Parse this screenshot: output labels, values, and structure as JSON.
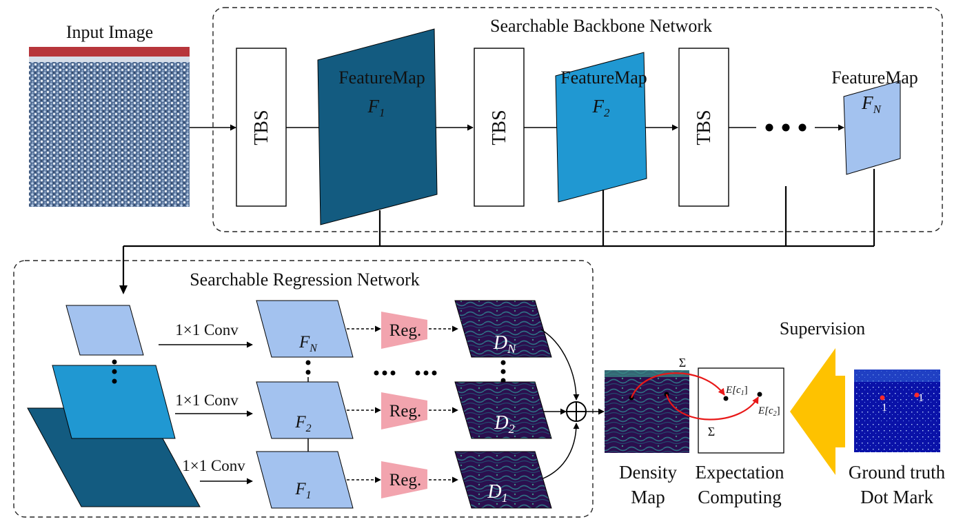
{
  "colors": {
    "feature_dark": "#135b80",
    "feature_mid": "#2098d2",
    "feature_light": "#a3c2ef",
    "reg_block": "#f2a4ae",
    "supervision_arrow": "#fec200",
    "density_bg": "#2b0f4e",
    "dotmark_bg": "#0a12a8",
    "red_arrow": "#e81818"
  },
  "input": {
    "title": "Input Image"
  },
  "backbone": {
    "title": "Searchable Backbone Network",
    "tbs_label": "TBS",
    "feature_label": "FeatureMap",
    "f1_sym": "F",
    "f1_sub": "1",
    "f2_sym": "F",
    "f2_sub": "2",
    "fn_sym": "F",
    "fn_sub": "N"
  },
  "regression": {
    "title": "Searchable Regression Network",
    "conv_label": "1×1 Conv",
    "reg_label": "Reg.",
    "fn_sym": "F",
    "fn_sub": "N",
    "f2_sym": "F",
    "f2_sub": "2",
    "f1_sym": "F",
    "f1_sub": "1",
    "dn_sym": "D",
    "dn_sub": "N",
    "d2_sym": "D",
    "d2_sub": "2",
    "d1_sym": "D",
    "d1_sub": "1"
  },
  "output": {
    "sigma": "Σ",
    "e1_pre": "E[",
    "e1_sym": "c",
    "e1_sub": "1",
    "e1_post": "]",
    "e2_pre": "E[",
    "e2_sym": "c",
    "e2_sub": "2",
    "e2_post": "]",
    "density_line1": "Density",
    "density_line2": "Map",
    "expect_line1": "Expectation",
    "expect_line2": "Computing",
    "supervision": "Supervision",
    "gt_line1": "Ground truth",
    "gt_line2": "Dot Mark",
    "dot_value": "1"
  }
}
